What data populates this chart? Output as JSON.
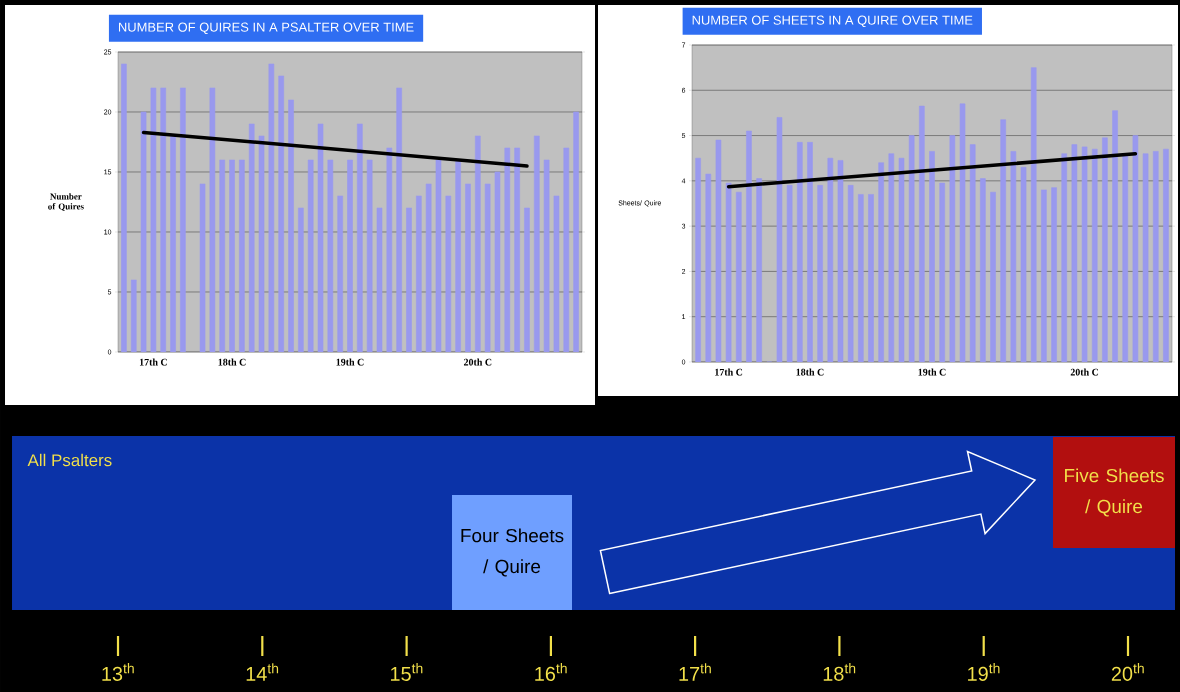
{
  "chart_data": [
    {
      "type": "bar",
      "title": "NUMBER OF QUIRES IN A PSALTER OVER TIME",
      "ylabel": "Number of Quires",
      "categories": [
        null,
        null,
        null,
        "17th C",
        null,
        null,
        null,
        null,
        null,
        null,
        null,
        "18th C",
        null,
        null,
        null,
        null,
        null,
        null,
        null,
        null,
        null,
        null,
        null,
        "19th C",
        null,
        null,
        null,
        null,
        null,
        null,
        null,
        null,
        null,
        null,
        null,
        null,
        "20th C",
        null,
        null,
        null,
        null,
        null,
        null,
        null,
        null,
        null,
        null
      ],
      "series": [
        {
          "type": "bar",
          "color": "#9999ee",
          "values": [
            24,
            6,
            20,
            22,
            22,
            18,
            22,
            null,
            14,
            22,
            16,
            16,
            16,
            19,
            18,
            24,
            23,
            21,
            12,
            16,
            19,
            16,
            13,
            16,
            19,
            16,
            12,
            17,
            22,
            12,
            13,
            14,
            16,
            13,
            16,
            14,
            18,
            14,
            15,
            17,
            17,
            12,
            18,
            16,
            13,
            17,
            20
          ]
        },
        {
          "type": "line",
          "color": "#000000",
          "values": [
            null,
            null,
            18.3,
            null,
            null,
            null,
            null,
            null,
            null,
            null,
            null,
            null,
            null,
            null,
            null,
            null,
            null,
            null,
            null,
            null,
            null,
            null,
            null,
            null,
            null,
            null,
            null,
            null,
            null,
            null,
            null,
            null,
            null,
            null,
            null,
            null,
            null,
            null,
            null,
            null,
            null,
            15.5,
            null,
            null,
            null,
            null,
            null
          ]
        }
      ],
      "ylim": [
        0,
        25
      ],
      "yticks": [
        0,
        5,
        10,
        15,
        20,
        25
      ],
      "grid": "y"
    },
    {
      "type": "bar",
      "title": "NUMBER OF SHEETS IN A QUIRE OVER TIME",
      "ylabel": "Sheets/ Quire",
      "categories": [
        null,
        null,
        null,
        "17th C",
        null,
        null,
        null,
        null,
        null,
        null,
        null,
        "18th C",
        null,
        null,
        null,
        null,
        null,
        null,
        null,
        null,
        null,
        null,
        null,
        "19th C",
        null,
        null,
        null,
        null,
        null,
        null,
        null,
        null,
        null,
        null,
        null,
        null,
        null,
        null,
        "20th C",
        null,
        null,
        null,
        null,
        null,
        null,
        null,
        null
      ],
      "series": [
        {
          "type": "bar",
          "color": "#9999ee",
          "values": [
            4.5,
            4.15,
            4.9,
            3.95,
            3.75,
            5.1,
            4.05,
            0,
            5.4,
            3.9,
            4.85,
            4.85,
            3.9,
            4.5,
            4.45,
            3.9,
            3.7,
            3.7,
            4.4,
            4.6,
            4.5,
            5.0,
            5.65,
            4.65,
            3.95,
            5.0,
            5.7,
            4.8,
            4.05,
            3.75,
            5.35,
            4.65,
            4.3,
            6.5,
            3.8,
            3.85,
            4.6,
            4.8,
            4.75,
            4.7,
            4.95,
            5.55,
            4.55,
            5.0,
            4.6,
            4.65,
            4.7
          ]
        },
        {
          "type": "line",
          "color": "#000000",
          "values": [
            null,
            null,
            null,
            3.87,
            null,
            null,
            null,
            null,
            null,
            null,
            null,
            null,
            null,
            null,
            null,
            null,
            null,
            null,
            null,
            null,
            null,
            null,
            null,
            null,
            null,
            null,
            null,
            null,
            null,
            null,
            null,
            null,
            null,
            null,
            null,
            null,
            null,
            null,
            null,
            null,
            null,
            null,
            null,
            4.6,
            null,
            null,
            null
          ]
        }
      ],
      "ylim": [
        0,
        7
      ],
      "yticks": [
        0,
        1,
        2,
        3,
        4,
        5,
        6,
        7
      ],
      "grid": "y"
    },
    {
      "type": "other",
      "categories": [
        "13$^{th}$",
        "14$^{th}$",
        "15$^{th}$",
        "16$^{th}$",
        "17$^{th}$",
        "18$^{th}$",
        "19$^{th}$",
        "20$^{th}$"
      ],
      "annotations": [
        "All Psalters",
        "Four Sheets / Quire",
        "Five Sheets / Quire"
      ]
    }
  ]
}
